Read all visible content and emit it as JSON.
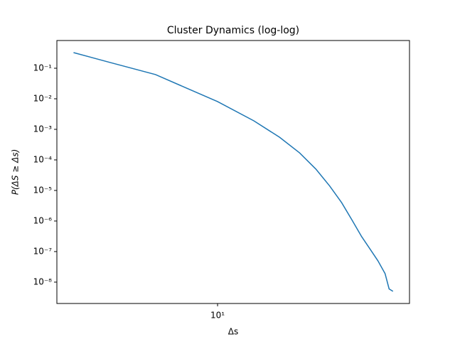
{
  "chart_data": {
    "type": "line",
    "title": "Cluster Dynamics (log-log)",
    "x_label": "Δs",
    "y_label": "P(ΔS ≥ Δs)",
    "x": [
      2,
      3,
      5,
      7,
      10,
      15,
      20,
      25,
      30,
      35,
      40,
      45,
      50,
      55,
      60,
      65,
      68,
      71
    ],
    "series": [
      {
        "name": "P(ΔS ≥ Δs)",
        "color": "#1f77b4",
        "values": [
          0.325,
          0.155,
          0.062,
          0.023,
          0.0081,
          0.0019,
          0.00055,
          0.00017,
          5e-05,
          1.4e-05,
          4e-06,
          1.05e-06,
          3.1e-07,
          1.2e-07,
          5e-08,
          1.9e-08,
          6e-09,
          5e-09
        ]
      }
    ],
    "xlim": [
      1.66,
      85.4
    ],
    "ylim": [
      2e-09,
      0.807
    ],
    "xscale": "log",
    "yscale": "log",
    "xticks": [
      {
        "value": 10,
        "label": "10¹"
      }
    ],
    "yticks": [
      {
        "value": 0.1,
        "label": "10⁻¹"
      },
      {
        "value": 0.01,
        "label": "10⁻²"
      },
      {
        "value": 0.001,
        "label": "10⁻³"
      },
      {
        "value": 0.0001,
        "label": "10⁻⁴"
      },
      {
        "value": 1e-05,
        "label": "10⁻⁵"
      },
      {
        "value": 1e-06,
        "label": "10⁻⁶"
      },
      {
        "value": 1e-07,
        "label": "10⁻⁷"
      },
      {
        "value": 1e-08,
        "label": "10⁻⁸"
      }
    ]
  }
}
